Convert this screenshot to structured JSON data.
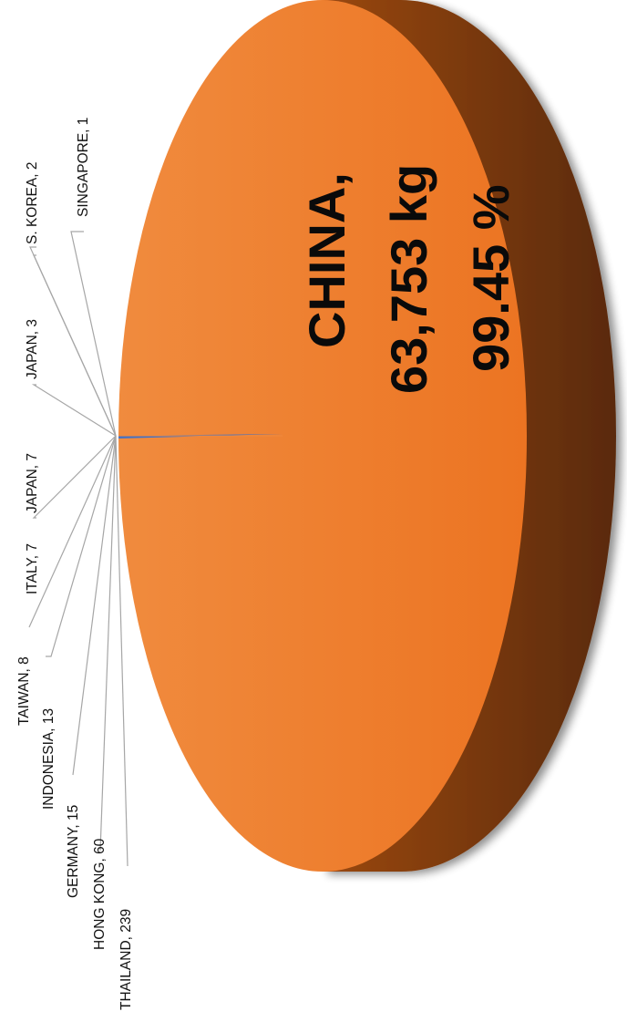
{
  "chart_data": {
    "type": "pie",
    "style": "3d-pie-rotated",
    "unit": "kg",
    "slices": [
      {
        "label": "CHINA",
        "value": 63753,
        "display_value": "63,753 kg",
        "percent_label": "99.45 %",
        "color": "#ef7d22"
      },
      {
        "label": "THAILAND",
        "value": 239,
        "display_value": "239",
        "color": "#4472c4"
      },
      {
        "label": "HONG KONG",
        "value": 60,
        "display_value": "60",
        "color": "#a5a5a5"
      },
      {
        "label": "GERMANY",
        "value": 15,
        "display_value": "15",
        "color": "#ffc000"
      },
      {
        "label": "INDONESIA",
        "value": 13,
        "display_value": "13",
        "color": "#5b9bd5"
      },
      {
        "label": "TAIWAN",
        "value": 8,
        "display_value": "8",
        "color": "#70ad47"
      },
      {
        "label": "ITALY",
        "value": 7,
        "display_value": "7",
        "color": "#264478"
      },
      {
        "label": "JAPAN",
        "value": 7,
        "display_value": "7",
        "color": "#9e480e"
      },
      {
        "label": "JAPAN",
        "value": 3,
        "display_value": "3",
        "color": "#636363"
      },
      {
        "label": "S. KOREA",
        "value": 2,
        "display_value": "2",
        "color": "#997300"
      },
      {
        "label": "SINGAPORE",
        "value": 1,
        "display_value": "1",
        "color": "#255e91"
      }
    ],
    "main_label": {
      "name": "CHINA,",
      "value": "63,753 kg",
      "percent": "99.45 %"
    },
    "small_labels": [
      {
        "text": "THAILAND, 239"
      },
      {
        "text": "HONG KONG, 60"
      },
      {
        "text": "GERMANY, 15"
      },
      {
        "text": "INDONESIA, 13"
      },
      {
        "text": "TAIWAN, 8"
      },
      {
        "text": "ITALY, 7"
      },
      {
        "text": "JAPAN, 7"
      },
      {
        "text": "JAPAN, 3"
      },
      {
        "text": "S. KOREA, 2"
      },
      {
        "text": "SINGAPORE, 1"
      }
    ],
    "colors": {
      "china_top_light": "#f08b3e",
      "china_top_dark": "#ec7422",
      "china_side_light": "#9a4812",
      "china_side_dark": "#5a2a0a",
      "leader_line": "#a6a6a6",
      "small_slice": "#4472c4"
    },
    "legend": "none"
  }
}
